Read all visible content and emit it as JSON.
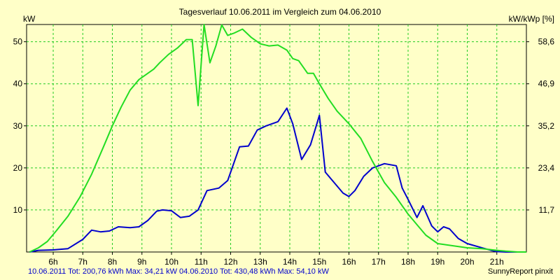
{
  "chart_data": {
    "type": "line",
    "title": "Tagesverlauf 10.06.2011 im Vergleich zum 04.06.2010",
    "ylabel_left": "kW",
    "ylabel_right": "kW/kWp [%]",
    "ylim": [
      0,
      54.1
    ],
    "x_ticks": [
      6,
      7,
      8,
      9,
      10,
      11,
      12,
      13,
      14,
      15,
      16,
      17,
      18,
      19,
      20,
      21
    ],
    "x_tick_labels": [
      "6h",
      "7h",
      "8h",
      "9h",
      "10h",
      "11h",
      "12h",
      "13h",
      "14h",
      "15h",
      "16h",
      "17h",
      "18h",
      "19h",
      "20h",
      "21h"
    ],
    "xlim": [
      5.1,
      22.0
    ],
    "y_ticks_left": [
      10,
      20,
      30,
      40,
      50
    ],
    "y_tick_labels_left": [
      "10",
      "20",
      "30",
      "40",
      "50"
    ],
    "y_ticks_right_at": [
      10,
      20,
      30,
      40,
      50
    ],
    "y_tick_labels_right": [
      "11,7",
      "23,4",
      "35,2",
      "46,9",
      "58,6"
    ],
    "grid": true,
    "series": [
      {
        "name": "10.06.2011",
        "color": "#0000cc",
        "x": [
          5.2,
          5.5,
          6.0,
          6.5,
          7.0,
          7.3,
          7.6,
          7.9,
          8.2,
          8.6,
          8.9,
          9.2,
          9.5,
          9.7,
          10.0,
          10.3,
          10.6,
          10.9,
          11.2,
          11.6,
          11.9,
          12.3,
          12.6,
          12.9,
          13.2,
          13.6,
          13.9,
          14.1,
          14.4,
          14.7,
          15.0,
          15.2,
          15.5,
          15.8,
          16.0,
          16.2,
          16.5,
          16.8,
          17.2,
          17.6,
          17.8,
          18.0,
          18.3,
          18.5,
          18.8,
          19.0,
          19.2,
          19.4,
          19.7,
          20.0,
          20.4,
          20.8,
          21.0,
          21.3,
          21.7,
          22.0
        ],
        "y": [
          0.0,
          0.4,
          0.5,
          0.8,
          3.0,
          5.2,
          4.8,
          5.0,
          6.0,
          5.8,
          6.0,
          7.5,
          9.7,
          10.0,
          9.8,
          8.2,
          8.5,
          10.0,
          14.6,
          15.2,
          17.0,
          25.0,
          25.2,
          29.0,
          30.0,
          31.0,
          34.2,
          30.5,
          22.0,
          25.5,
          32.5,
          19.0,
          16.5,
          14.0,
          13.2,
          14.6,
          18.0,
          20.0,
          21.0,
          20.5,
          15.2,
          12.5,
          8.2,
          11.0,
          6.2,
          4.8,
          6.0,
          5.5,
          3.2,
          2.0,
          1.2,
          0.4,
          0.1,
          0.0,
          0.0,
          0.0
        ]
      },
      {
        "name": "04.06.2010",
        "color": "#22dd22",
        "x": [
          5.2,
          5.5,
          5.8,
          6.1,
          6.5,
          6.9,
          7.3,
          7.7,
          8.0,
          8.3,
          8.6,
          8.9,
          9.1,
          9.4,
          9.6,
          9.9,
          10.2,
          10.5,
          10.7,
          10.9,
          11.1,
          11.3,
          11.5,
          11.7,
          11.9,
          12.1,
          12.4,
          12.7,
          13.0,
          13.3,
          13.6,
          13.9,
          14.1,
          14.3,
          14.6,
          14.8,
          15.0,
          15.3,
          15.6,
          16.0,
          16.4,
          16.8,
          17.2,
          17.6,
          18.0,
          18.3,
          18.6,
          19.0,
          19.5,
          20.0,
          20.5,
          21.0,
          21.3,
          21.7,
          22.0
        ],
        "y": [
          0.0,
          1.0,
          2.5,
          5.0,
          8.5,
          13.0,
          18.5,
          25.0,
          30.0,
          34.5,
          38.5,
          41.0,
          42.0,
          43.5,
          45.0,
          47.0,
          48.5,
          50.5,
          50.5,
          34.8,
          54.1,
          45.0,
          49.0,
          54.0,
          51.5,
          52.0,
          53.0,
          51.0,
          49.5,
          49.0,
          49.2,
          48.0,
          46.0,
          45.5,
          42.5,
          42.5,
          40.0,
          36.5,
          33.5,
          30.5,
          27.0,
          21.5,
          16.5,
          13.0,
          9.0,
          6.5,
          4.0,
          2.0,
          1.5,
          1.0,
          0.8,
          0.4,
          0.2,
          0.0,
          0.0
        ]
      }
    ]
  },
  "labels": {
    "title": "Tagesverlauf 10.06.2011 im Vergleich zum 04.06.2010",
    "y_left": "kW",
    "y_right": "kW/kWp [%]",
    "footer_left": "10.06.2011 Tot: 200,76 kWh Max: 34,21 kW 04.06.2010 Tot: 430,48 kWh Max: 54,10 kW",
    "footer_right": "SunnyReport pinxit"
  },
  "colors": {
    "background": "#ffffc8",
    "grid": "#22cc22",
    "footer_text": "#0000cc"
  }
}
